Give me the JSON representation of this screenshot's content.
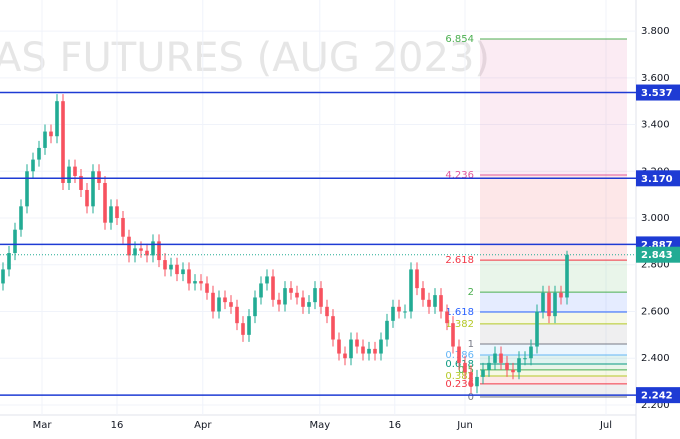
{
  "chart_data": {
    "type": "candlestick",
    "watermark": "AS FUTURES (AUG 2023)",
    "xlim": [
      -0.5,
      105.5
    ],
    "xticks": [
      {
        "value": 6.5,
        "label": "Mar"
      },
      {
        "value": 19,
        "label": "16"
      },
      {
        "value": 33.3,
        "label": "Apr"
      },
      {
        "value": 52.8,
        "label": "May"
      },
      {
        "value": 65.3,
        "label": "16"
      },
      {
        "value": 77,
        "label": "Jun"
      },
      {
        "value": 100.5,
        "label": "Jul"
      }
    ],
    "ylim": [
      2.157,
      3.933
    ],
    "yticks": [
      {
        "value": 2.2,
        "label": "2.200"
      },
      {
        "value": 2.4,
        "label": "2.400"
      },
      {
        "value": 2.6,
        "label": "2.600"
      },
      {
        "value": 2.8,
        "label": "2.800"
      },
      {
        "value": 3.0,
        "label": "3.000"
      },
      {
        "value": 3.2,
        "label": "3.200"
      },
      {
        "value": 3.4,
        "label": "3.400"
      },
      {
        "value": 3.6,
        "label": "3.600"
      },
      {
        "value": 3.8,
        "label": "3.800"
      }
    ],
    "grid": true,
    "up_color": "#22ab94",
    "down_color": "#f7525f",
    "open": [
      2.72,
      2.78,
      2.85,
      2.95,
      3.05,
      3.2,
      3.25,
      3.3,
      3.37,
      3.35,
      3.5,
      3.15,
      3.22,
      3.18,
      3.12,
      3.05,
      3.2,
      3.15,
      2.98,
      3.05,
      3.0,
      2.92,
      2.84,
      2.87,
      2.86,
      2.84,
      2.9,
      2.82,
      2.78,
      2.8,
      2.76,
      2.78,
      2.72,
      2.73,
      2.72,
      2.68,
      2.6,
      2.66,
      2.64,
      2.62,
      2.55,
      2.5,
      2.58,
      2.66,
      2.72,
      2.75,
      2.65,
      2.63,
      2.7,
      2.68,
      2.66,
      2.62,
      2.64,
      2.7,
      2.62,
      2.58,
      2.48,
      2.42,
      2.4,
      2.48,
      2.45,
      2.42,
      2.44,
      2.42,
      2.48,
      2.56,
      2.62,
      2.6,
      2.6,
      2.78,
      2.7,
      2.65,
      2.62,
      2.67,
      2.6,
      2.55,
      2.45,
      2.38,
      2.34,
      2.28,
      2.32,
      2.35,
      2.38,
      2.42,
      2.38,
      2.35,
      2.34,
      2.4,
      2.4,
      2.45,
      2.6,
      2.68,
      2.58,
      2.68,
      2.66
    ],
    "high": [
      2.81,
      2.88,
      2.98,
      3.08,
      3.23,
      3.28,
      3.33,
      3.4,
      3.4,
      3.53,
      3.53,
      3.25,
      3.25,
      3.21,
      3.15,
      3.23,
      3.23,
      3.18,
      3.08,
      3.08,
      3.03,
      2.95,
      2.9,
      2.9,
      2.89,
      2.93,
      2.93,
      2.85,
      2.83,
      2.83,
      2.81,
      2.81,
      2.76,
      2.76,
      2.75,
      2.71,
      2.69,
      2.69,
      2.67,
      2.65,
      2.58,
      2.61,
      2.69,
      2.75,
      2.78,
      2.78,
      2.68,
      2.73,
      2.73,
      2.71,
      2.69,
      2.67,
      2.73,
      2.73,
      2.65,
      2.61,
      2.51,
      2.45,
      2.51,
      2.51,
      2.48,
      2.47,
      2.47,
      2.51,
      2.59,
      2.65,
      2.65,
      2.63,
      2.81,
      2.81,
      2.73,
      2.68,
      2.7,
      2.7,
      2.63,
      2.58,
      2.48,
      2.41,
      2.37,
      2.35,
      2.38,
      2.41,
      2.45,
      2.45,
      2.41,
      2.38,
      2.43,
      2.43,
      2.48,
      2.63,
      2.71,
      2.71,
      2.71,
      2.71,
      2.86
    ],
    "low": [
      2.69,
      2.75,
      2.82,
      2.92,
      3.02,
      3.17,
      3.22,
      3.27,
      3.32,
      3.32,
      3.12,
      3.12,
      3.15,
      3.09,
      3.02,
      3.02,
      3.12,
      2.95,
      2.95,
      2.97,
      2.89,
      2.81,
      2.81,
      2.83,
      2.81,
      2.81,
      2.79,
      2.75,
      2.75,
      2.73,
      2.73,
      2.69,
      2.69,
      2.69,
      2.65,
      2.57,
      2.57,
      2.61,
      2.59,
      2.52,
      2.47,
      2.47,
      2.55,
      2.63,
      2.69,
      2.62,
      2.6,
      2.6,
      2.65,
      2.63,
      2.59,
      2.59,
      2.61,
      2.59,
      2.55,
      2.45,
      2.39,
      2.37,
      2.37,
      2.42,
      2.39,
      2.39,
      2.39,
      2.39,
      2.45,
      2.53,
      2.57,
      2.57,
      2.57,
      2.67,
      2.62,
      2.59,
      2.59,
      2.57,
      2.52,
      2.42,
      2.35,
      2.31,
      2.25,
      2.25,
      2.29,
      2.32,
      2.35,
      2.35,
      2.32,
      2.31,
      2.31,
      2.37,
      2.37,
      2.42,
      2.57,
      2.55,
      2.55,
      2.63,
      2.63
    ],
    "close": [
      2.78,
      2.85,
      2.95,
      3.05,
      3.2,
      3.25,
      3.3,
      3.37,
      3.35,
      3.5,
      3.15,
      3.22,
      3.18,
      3.12,
      3.05,
      3.2,
      3.15,
      2.98,
      3.05,
      3.0,
      2.92,
      2.84,
      2.87,
      2.86,
      2.84,
      2.9,
      2.82,
      2.78,
      2.8,
      2.76,
      2.78,
      2.72,
      2.73,
      2.72,
      2.68,
      2.6,
      2.66,
      2.64,
      2.62,
      2.55,
      2.5,
      2.58,
      2.66,
      2.72,
      2.75,
      2.65,
      2.63,
      2.7,
      2.68,
      2.66,
      2.62,
      2.64,
      2.7,
      2.62,
      2.58,
      2.48,
      2.42,
      2.4,
      2.48,
      2.45,
      2.42,
      2.44,
      2.42,
      2.48,
      2.56,
      2.62,
      2.6,
      2.6,
      2.78,
      2.7,
      2.65,
      2.62,
      2.67,
      2.6,
      2.55,
      2.45,
      2.38,
      2.34,
      2.28,
      2.32,
      2.35,
      2.38,
      2.42,
      2.38,
      2.35,
      2.34,
      2.4,
      2.4,
      2.45,
      2.6,
      2.68,
      2.58,
      2.68,
      2.66,
      2.843
    ],
    "horizontal_lines": [
      3.537,
      {
        "value": 3.17,
        "label": "3.170"
      },
      2.887,
      2.242
    ],
    "line_color": "#1e3bd4",
    "last_price": 2.843,
    "last_price_color": "#22ab94",
    "fib_range": [
      79.5,
      104
    ],
    "fib_levels": [
      {
        "ratio": 6.854,
        "price": 3.766,
        "color": "#4caf50"
      },
      {
        "ratio": 4.236,
        "price": 3.184,
        "color": "#e0589b"
      },
      {
        "ratio": 2.618,
        "price": 2.82,
        "color": "#f23645"
      },
      {
        "ratio": 2,
        "price": 2.683,
        "color": "#4caf50"
      },
      {
        "ratio": 1.618,
        "price": 2.598,
        "color": "#2962ff"
      },
      {
        "ratio": 1.382,
        "price": 2.547,
        "color": "#b5c927"
      },
      {
        "ratio": 1,
        "price": 2.461,
        "color": "#787b86"
      },
      {
        "ratio": 0.786,
        "price": 2.414,
        "color": "#64b5f6"
      },
      {
        "ratio": 0.618,
        "price": 2.375,
        "color": "#089981"
      },
      {
        "ratio": 0.5,
        "price": 2.35,
        "color": "#4caf50"
      },
      {
        "ratio": 0.382,
        "price": 2.324,
        "color": "#b5c927"
      },
      {
        "ratio": 0.236,
        "price": 2.29,
        "color": "#f23645"
      },
      {
        "ratio": 0,
        "price": 2.234,
        "color": "#787b86"
      }
    ]
  }
}
